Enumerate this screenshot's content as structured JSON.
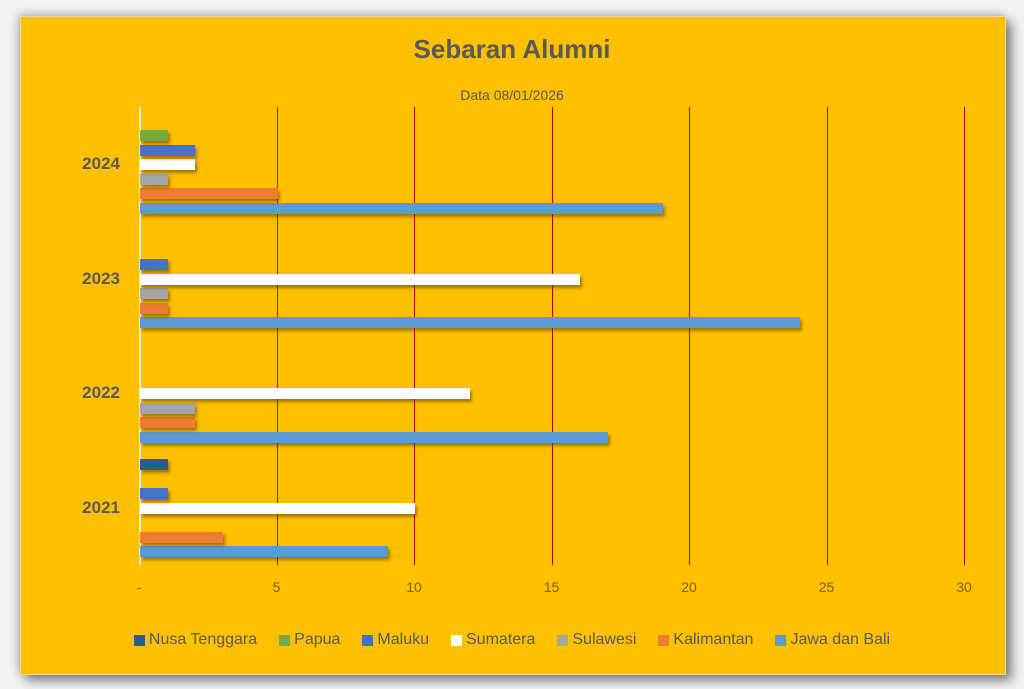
{
  "chart_data": {
    "type": "bar",
    "orientation": "horizontal",
    "title": "Sebaran Alumni",
    "subtitle": "Data 08/01/2026",
    "xlabel": "",
    "ylabel": "",
    "xlim": [
      0,
      30
    ],
    "x_ticks": [
      "-",
      "5",
      "10",
      "15",
      "20",
      "25",
      "30"
    ],
    "x_tick_values": [
      0,
      5,
      10,
      15,
      20,
      25,
      30
    ],
    "grid": true,
    "legend_position": "bottom",
    "categories": [
      "2021",
      "2022",
      "2023",
      "2024"
    ],
    "series": [
      {
        "name": "Jawa dan Bali",
        "color": "#5b9bd5",
        "values": [
          9,
          17,
          24,
          19
        ]
      },
      {
        "name": "Kalimantan",
        "color": "#ed7d31",
        "values": [
          3,
          2,
          1,
          5
        ]
      },
      {
        "name": "Sulawesi",
        "color": "#a5a5a5",
        "values": [
          0,
          2,
          1,
          1
        ]
      },
      {
        "name": "Sumatera",
        "color": "#ffffff",
        "values": [
          10,
          12,
          16,
          2
        ]
      },
      {
        "name": "Maluku",
        "color": "#4472c4",
        "values": [
          1,
          0,
          1,
          2
        ]
      },
      {
        "name": "Papua",
        "color": "#70ad47",
        "values": [
          0,
          0,
          0,
          1
        ]
      },
      {
        "name": "Nusa Tenggara",
        "color": "#255e91",
        "values": [
          1,
          0,
          0,
          0
        ]
      }
    ],
    "legend_order": [
      "Nusa Tenggara",
      "Papua",
      "Maluku",
      "Sumatera",
      "Sulawesi",
      "Kalimantan",
      "Jawa dan Bali"
    ]
  },
  "colors": {
    "background": "#ffc000",
    "gridline": "#c00000",
    "text": "#595959",
    "tick_text": "#7f6000"
  }
}
